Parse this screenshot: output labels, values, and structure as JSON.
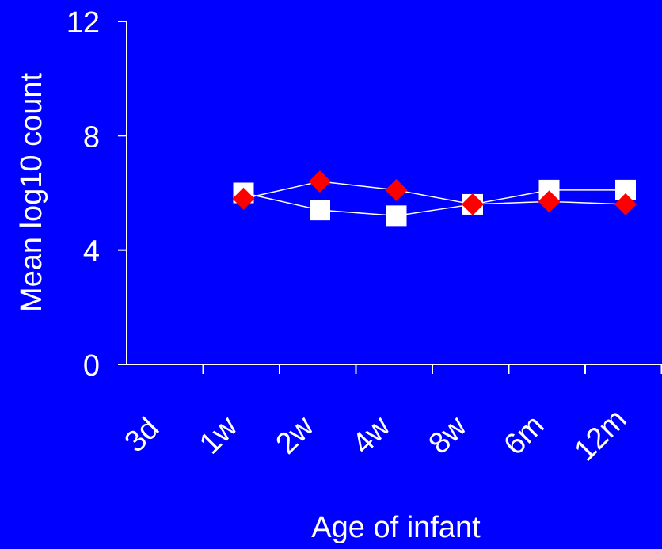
{
  "colors": {
    "background": "#0000ff",
    "axis": "#ffffff",
    "line": "#ffffff",
    "series_a_marker": "#ffffff",
    "series_b_marker": "#ff0000"
  },
  "chart_data": {
    "type": "line",
    "title": "",
    "xlabel": "Age of infant",
    "ylabel": "Mean log10 count",
    "categories": [
      "3d",
      "1w",
      "2w",
      "4w",
      "8w",
      "6m",
      "12m"
    ],
    "ylim": [
      0,
      12
    ],
    "yticks": [
      0,
      4,
      8,
      12
    ],
    "grid": false,
    "legend": "none",
    "series": [
      {
        "marker": "square",
        "color": "#ffffff",
        "values": [
          null,
          6.0,
          5.4,
          5.2,
          5.6,
          6.1,
          6.1
        ]
      },
      {
        "marker": "diamond",
        "color": "#ff0000",
        "values": [
          null,
          5.8,
          6.4,
          6.1,
          5.6,
          5.7,
          5.6
        ]
      }
    ]
  }
}
